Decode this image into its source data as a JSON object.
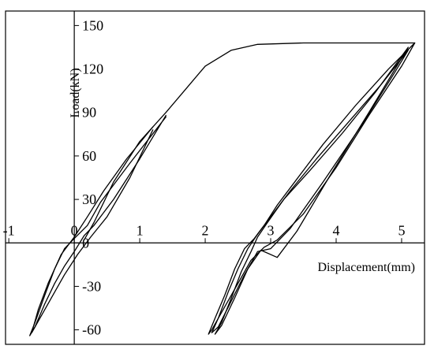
{
  "chart_data": {
    "type": "line",
    "title": "",
    "xlabel": "Displacement(mm)",
    "ylabel": "Load(kN)",
    "xlim": [
      -1.05,
      5.35
    ],
    "ylim": [
      -70,
      160
    ],
    "x_ticks": [
      -1,
      0,
      1,
      2,
      3,
      4,
      5
    ],
    "x_tick_labels": [
      "-1",
      "0",
      "1",
      "2",
      "3",
      "4",
      "5"
    ],
    "y_ticks": [
      -60,
      -30,
      0,
      30,
      60,
      90,
      120,
      150
    ],
    "y_tick_labels": [
      "-60",
      "-30",
      "0",
      "30",
      "60",
      "90",
      "120",
      "150"
    ],
    "grid": false,
    "series": [
      {
        "color": "#000000",
        "x": [
          1.4,
          0.85,
          0.4,
          0.2,
          0.0,
          -0.15,
          -0.3,
          -0.45,
          -0.6,
          -0.68,
          -0.6,
          -0.45,
          -0.3,
          -0.15,
          0.0,
          0.15,
          0.3,
          0.6,
          1.0,
          1.4
        ],
        "y": [
          87,
          55,
          28,
          12,
          3,
          -4,
          -18,
          -36,
          -55,
          -64,
          -58,
          -42,
          -28,
          -16,
          -6,
          5,
          12,
          30,
          58,
          88
        ]
      },
      {
        "color": "#000000",
        "x": [
          1.2,
          0.8,
          0.45,
          0.2,
          0.0,
          -0.2,
          -0.4,
          -0.55,
          -0.65,
          -0.55,
          -0.35,
          -0.15,
          0.05,
          0.25,
          0.5,
          0.85,
          1.2
        ],
        "y": [
          80,
          58,
          36,
          18,
          4,
          -8,
          -28,
          -46,
          -62,
          -54,
          -38,
          -22,
          -8,
          4,
          18,
          45,
          78
        ]
      },
      {
        "color": "#000000",
        "x": [
          0.15,
          0.3,
          0.6,
          1.0,
          1.4,
          1.7,
          2.0,
          2.4,
          2.8,
          3.5,
          4.2,
          4.8,
          5.15,
          5.2
        ],
        "y": [
          2,
          14,
          42,
          70,
          90,
          106,
          122,
          133,
          137,
          138,
          138,
          138,
          138,
          138
        ]
      },
      {
        "color": "#000000",
        "x": [
          5.2,
          4.8,
          4.3,
          3.8,
          3.4,
          3.1,
          2.9,
          2.75,
          2.6,
          2.45,
          2.3,
          2.15,
          2.05,
          2.1,
          2.3,
          2.5,
          2.7,
          2.9,
          3.1,
          3.5,
          4.0,
          4.5,
          5.0,
          5.2
        ],
        "y": [
          138,
          120,
          95,
          68,
          44,
          26,
          12,
          3,
          -4,
          -18,
          -36,
          -52,
          -63,
          -60,
          -44,
          -28,
          -12,
          -3,
          2,
          20,
          52,
          88,
          122,
          138
        ]
      },
      {
        "color": "#000000",
        "x": [
          5.1,
          4.7,
          4.2,
          3.7,
          3.3,
          3.0,
          2.8,
          2.65,
          2.5,
          2.35,
          2.2,
          2.1,
          2.2,
          2.4,
          2.6,
          2.8,
          3.0,
          3.3,
          3.8,
          4.4,
          4.9,
          5.1
        ],
        "y": [
          133,
          110,
          84,
          58,
          36,
          18,
          6,
          -4,
          -18,
          -34,
          -52,
          -62,
          -58,
          -40,
          -22,
          -6,
          -4,
          10,
          42,
          82,
          118,
          133
        ]
      },
      {
        "color": "#000000",
        "x": [
          5.1,
          4.6,
          4.1,
          3.6,
          3.2,
          2.95,
          2.8,
          2.7,
          2.55,
          2.4,
          2.25,
          2.15,
          2.25,
          2.45,
          2.65,
          2.85,
          3.1,
          3.4,
          3.9,
          4.5,
          5.1
        ],
        "y": [
          135,
          104,
          76,
          50,
          30,
          14,
          4,
          -6,
          -20,
          -38,
          -55,
          -63,
          -57,
          -38,
          -18,
          -5,
          -10,
          8,
          46,
          90,
          135
        ]
      }
    ]
  }
}
